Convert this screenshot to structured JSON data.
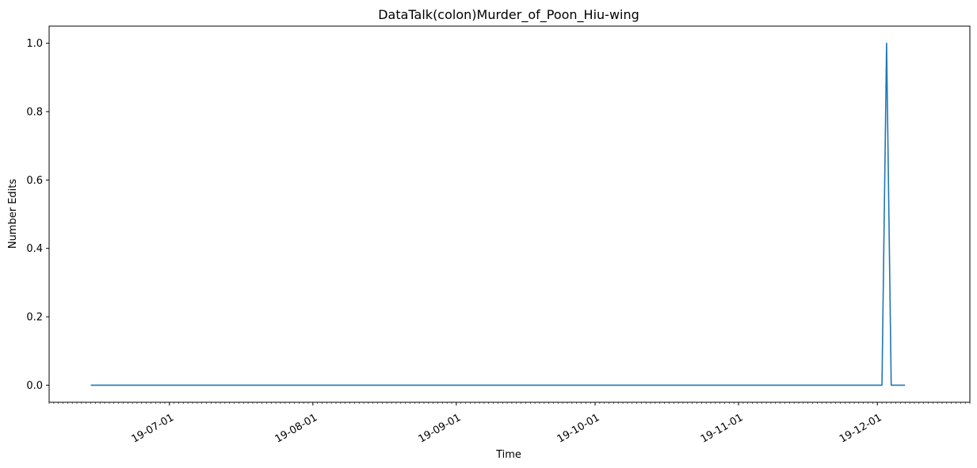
{
  "chart_data": {
    "type": "line",
    "title": "DataTalk(colon)Murder_of_Poon_Hiu-wing",
    "xlabel": "Time",
    "ylabel": "Number Edits",
    "xlim": [
      "2019-06-05",
      "2019-12-21"
    ],
    "ylim": [
      -0.05,
      1.05
    ],
    "x_ticks": [
      {
        "date": "2019-07-01",
        "label": "19-07-01"
      },
      {
        "date": "2019-08-01",
        "label": "19-08-01"
      },
      {
        "date": "2019-09-01",
        "label": "19-09-01"
      },
      {
        "date": "2019-10-01",
        "label": "19-10-01"
      },
      {
        "date": "2019-11-01",
        "label": "19-11-01"
      },
      {
        "date": "2019-12-01",
        "label": "19-12-01"
      }
    ],
    "y_ticks": [
      {
        "value": 0.0,
        "label": "0.0"
      },
      {
        "value": 0.2,
        "label": "0.2"
      },
      {
        "value": 0.4,
        "label": "0.4"
      },
      {
        "value": 0.6,
        "label": "0.6"
      },
      {
        "value": 0.8,
        "label": "0.8"
      },
      {
        "value": 1.0,
        "label": "1.0"
      }
    ],
    "grid": false,
    "series": [
      {
        "color": "#1f77b4",
        "points": [
          {
            "x": "2019-06-14",
            "y": 0
          },
          {
            "x": "2019-12-02",
            "y": 0
          },
          {
            "x": "2019-12-03",
            "y": 1
          },
          {
            "x": "2019-12-04",
            "y": 0
          },
          {
            "x": "2019-12-07",
            "y": 0
          }
        ]
      }
    ]
  }
}
